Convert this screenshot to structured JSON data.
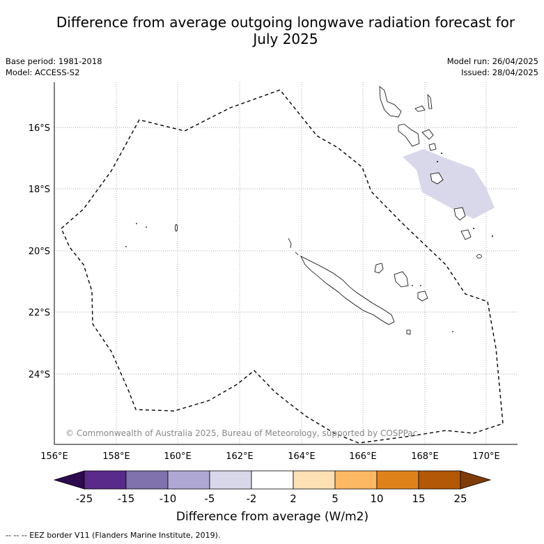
{
  "title_line1": "Difference from average outgoing longwave radiation forecast for",
  "title_line2": "July 2025",
  "info": {
    "base_period": "Base period: 1981-2018",
    "model": "Model: ACCESS-S2",
    "model_run": "Model run: 26/04/2025",
    "issued": "Issued: 28/04/2025"
  },
  "axes": {
    "x_ticks": [
      "156°E",
      "158°E",
      "160°E",
      "162°E",
      "164°E",
      "166°E",
      "168°E",
      "170°E"
    ],
    "y_ticks": [
      "16°S",
      "18°S",
      "20°S",
      "22°S",
      "24°S"
    ]
  },
  "copyright": "© Commonwealth of Australia 2025, Bureau of Meteorology, supported by COSPPac",
  "colorbar": {
    "label": "Difference from average (W/m2)",
    "ticks": [
      "-25",
      "-15",
      "-10",
      "-5",
      "-2",
      "2",
      "5",
      "10",
      "15",
      "25"
    ],
    "colors": [
      "#2e0a4e",
      "#5a2a8a",
      "#7f72ad",
      "#b0a8d4",
      "#d8d8ea",
      "#ffffff",
      "#fde0b4",
      "#fdb863",
      "#e0821a",
      "#b35806",
      "#7f3b08"
    ]
  },
  "footer": "--  --  -- EEZ border V11 (Flanders Marine Institute, 2019).",
  "anomaly_region_color": "#d8d8ea"
}
